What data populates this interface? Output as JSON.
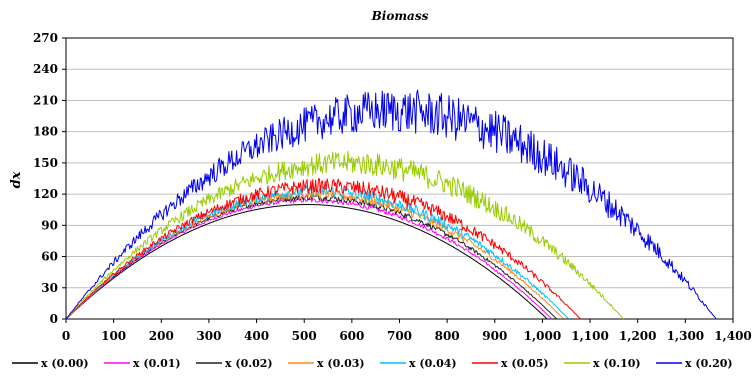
{
  "chart_data": {
    "type": "line",
    "title": "Biomass",
    "xlabel": "",
    "ylabel": "dx",
    "xlim": [
      0,
      1400
    ],
    "ylim": [
      0,
      270
    ],
    "x_ticks": [
      0,
      100,
      200,
      300,
      400,
      500,
      600,
      700,
      800,
      900,
      1000,
      1100,
      1200,
      1300,
      1400
    ],
    "x_tick_labels": [
      "0",
      "100",
      "200",
      "300",
      "400",
      "500",
      "600",
      "700",
      "800",
      "900",
      "1,000",
      "1,100",
      "1,200",
      "1,300",
      "1,400"
    ],
    "y_ticks": [
      0,
      30,
      60,
      90,
      120,
      150,
      180,
      210,
      240,
      270
    ],
    "y_tick_labels": [
      "0",
      "30",
      "60",
      "90",
      "120",
      "150",
      "180",
      "210",
      "240",
      "270"
    ],
    "grid": "horizontal",
    "legend_position": "bottom",
    "series": [
      {
        "name": "x (0.00)",
        "color": "#000000",
        "peak_x": 505,
        "peak_y": 110,
        "end_x": 1010,
        "noise": 0
      },
      {
        "name": "x (0.01)",
        "color": "#ff00ff",
        "peak_x": 510,
        "peak_y": 114,
        "end_x": 1020,
        "noise": 3
      },
      {
        "name": "x (0.02)",
        "color": "#222222",
        "peak_x": 515,
        "peak_y": 117,
        "end_x": 1030,
        "noise": 4
      },
      {
        "name": "x (0.03)",
        "color": "#ff8c1a",
        "peak_x": 522,
        "peak_y": 120,
        "end_x": 1045,
        "noise": 6
      },
      {
        "name": "x (0.04)",
        "color": "#00bfff",
        "peak_x": 528,
        "peak_y": 123,
        "end_x": 1055,
        "noise": 8
      },
      {
        "name": "x (0.05)",
        "color": "#ff0000",
        "peak_x": 540,
        "peak_y": 128,
        "end_x": 1080,
        "noise": 10
      },
      {
        "name": "x (0.10)",
        "color": "#99cc00",
        "peak_x": 585,
        "peak_y": 150,
        "end_x": 1170,
        "noise": 16
      },
      {
        "name": "x (0.20)",
        "color": "#0000ee",
        "peak_x": 680,
        "peak_y": 200,
        "end_x": 1365,
        "noise": 30
      }
    ]
  }
}
